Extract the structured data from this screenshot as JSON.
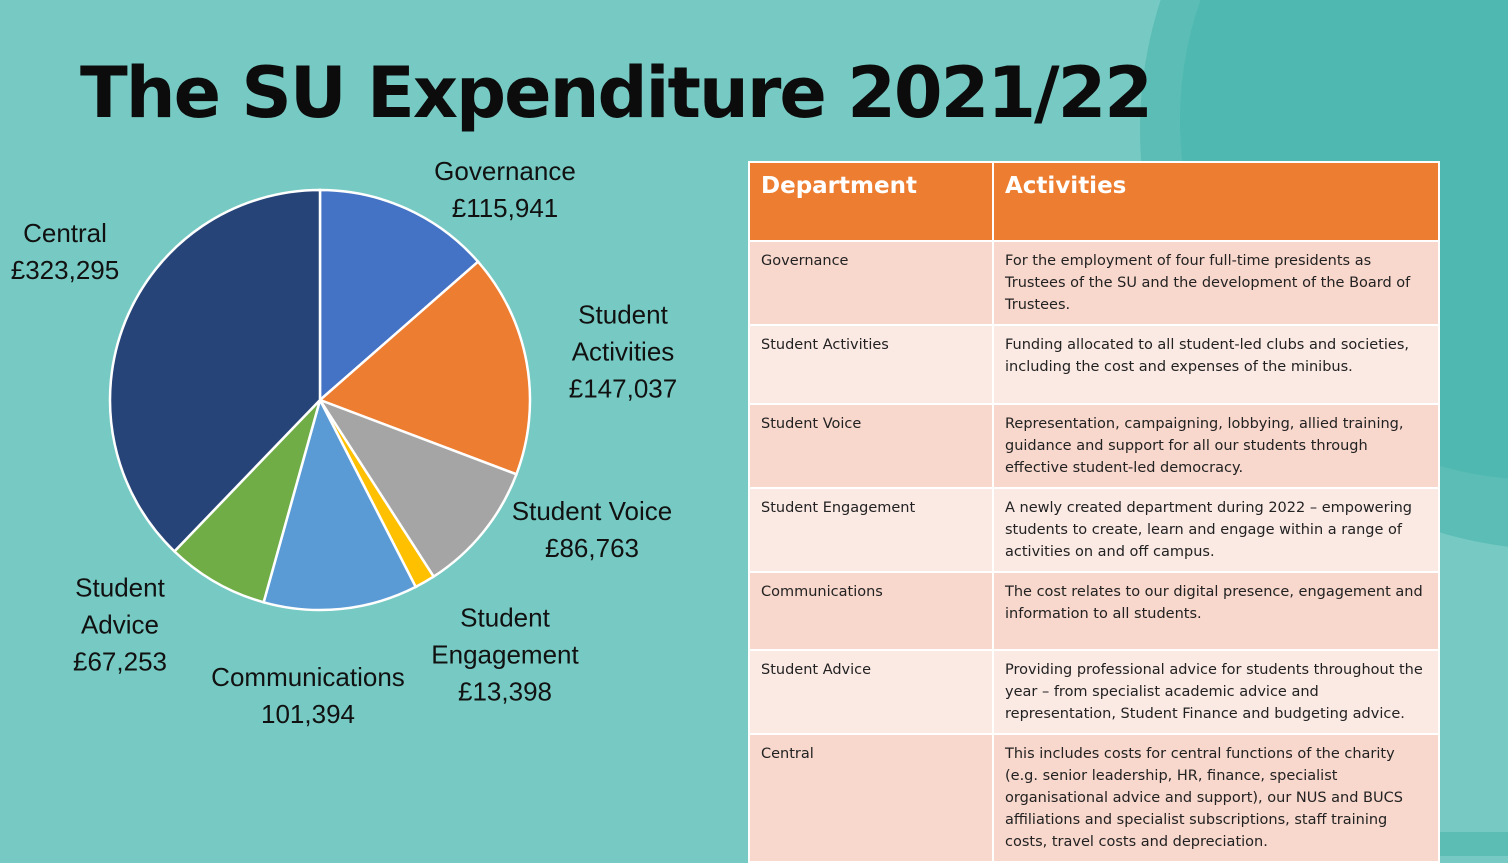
{
  "title": "The SU Expenditure 2021/22",
  "chart_data": {
    "type": "pie",
    "categories": [
      "Governance",
      "Student Activities",
      "Student Voice",
      "Student Engagement",
      "Communications",
      "Student Advice",
      "Central"
    ],
    "values": [
      115941,
      147037,
      86763,
      13398,
      101394,
      67253,
      323295
    ],
    "value_labels": [
      "£115,941",
      "£147,037",
      "£86,763",
      "£13,398",
      "101,394",
      "£67,253",
      "£323,295"
    ],
    "colors": [
      "#4472c4",
      "#ed7d31",
      "#a5a5a5",
      "#ffc000",
      "#5b9bd5",
      "#70ad47",
      "#264478"
    ]
  },
  "table": {
    "header": [
      "Department",
      "Activities"
    ],
    "rows": [
      [
        "Governance",
        "For the employment of four full-time presidents as Trustees of the SU and the development of the Board of Trustees."
      ],
      [
        "Student Activities",
        "Funding allocated to all student-led clubs and societies, including the cost and expenses of the minibus."
      ],
      [
        "Student Voice",
        "Representation, campaigning, lobbying, allied training, guidance and support for all our students through effective student-led democracy."
      ],
      [
        "Student Engagement",
        "A newly created department during 2022 – empowering students to create, learn and engage within a range of activities on and off campus."
      ],
      [
        "Communications",
        "The cost relates to our digital presence, engagement and information to all students."
      ],
      [
        "Student Advice",
        "Providing professional advice for students throughout the year – from specialist academic advice and representation, Student Finance and budgeting advice."
      ],
      [
        "Central",
        "This includes costs for central functions of the charity (e.g. senior leadership, HR, finance, specialist organisational advice and support), our NUS and BUCS affiliations and specialist subscriptions, staff training costs, travel costs and depreciation."
      ]
    ]
  }
}
